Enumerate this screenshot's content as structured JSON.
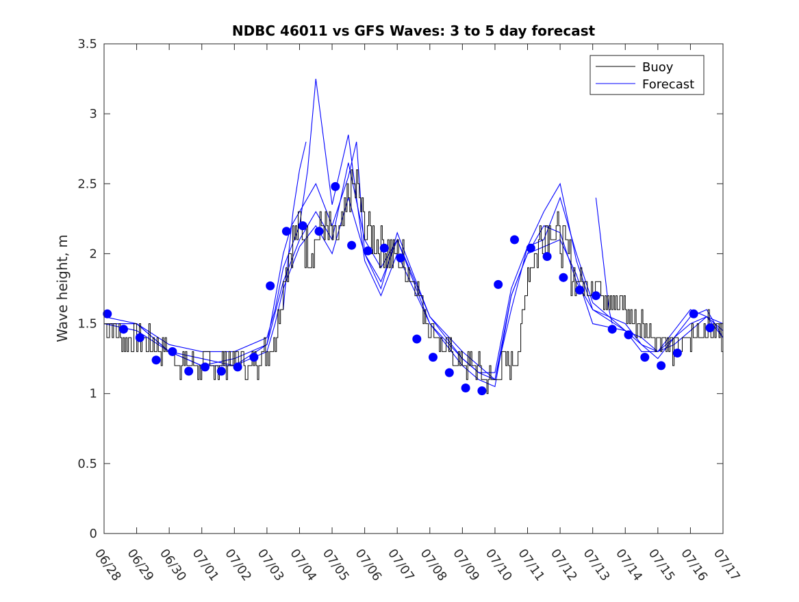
{
  "chart_data": {
    "type": "line",
    "title": "NDBC 46011 vs GFS Waves: 3 to 5 day forecast",
    "xlabel": "",
    "ylabel": "Wave height, m",
    "xlim": [
      "06/28",
      "07/17"
    ],
    "ylim": [
      0,
      3.5
    ],
    "y_ticks": [
      0,
      0.5,
      1,
      1.5,
      2,
      2.5,
      3,
      3.5
    ],
    "y_tick_labels": [
      "0",
      "0.5",
      "1",
      "1.5",
      "2",
      "2.5",
      "3",
      "3.5"
    ],
    "x_tick_labels": [
      "06/28",
      "06/29",
      "06/30",
      "07/01",
      "07/02",
      "07/03",
      "07/04",
      "07/05",
      "07/06",
      "07/07",
      "07/08",
      "07/09",
      "07/10",
      "07/11",
      "07/12",
      "07/13",
      "07/14",
      "07/15",
      "07/16",
      "07/17"
    ],
    "grid": false,
    "legend": {
      "position": "top-right",
      "entries": [
        "Buoy",
        "Forecast"
      ]
    },
    "colors": {
      "buoy": "#000000",
      "forecast": "#0000ff",
      "axes": "#262626"
    },
    "series": [
      {
        "name": "Buoy",
        "x_unit": "days after 06/28 00:00",
        "x": [
          0,
          0.5,
          1,
          1.5,
          2,
          2.5,
          3,
          3.5,
          4,
          4.5,
          5,
          5.25,
          5.5,
          5.75,
          6,
          6.25,
          6.5,
          6.75,
          7,
          7.25,
          7.5,
          7.75,
          8,
          8.25,
          8.5,
          8.75,
          9,
          9.5,
          10,
          10.5,
          11,
          11.5,
          11.75,
          12,
          12.25,
          12.5,
          12.75,
          13,
          13.25,
          13.5,
          13.75,
          14,
          14.5,
          15,
          15.5,
          16,
          16.25,
          16.5,
          17,
          17.5,
          18,
          18.5,
          19
        ],
        "y": [
          1.5,
          1.4,
          1.4,
          1.35,
          1.3,
          1.2,
          1.2,
          1.2,
          1.25,
          1.2,
          1.3,
          1.4,
          1.8,
          2.1,
          2.2,
          2.0,
          2.1,
          2.2,
          2.1,
          2.1,
          2.4,
          2.5,
          2.2,
          2.1,
          2.1,
          2.0,
          2.0,
          1.8,
          1.5,
          1.3,
          1.2,
          1.2,
          1.1,
          1.1,
          1.2,
          1.2,
          1.3,
          1.9,
          2.0,
          2.2,
          2.2,
          2.1,
          1.8,
          1.8,
          1.7,
          1.6,
          1.5,
          1.5,
          1.4,
          1.3,
          1.4,
          1.5,
          1.4
        ]
      },
      {
        "name": "Forecast",
        "x": [
          0,
          1,
          2,
          3,
          4,
          5,
          5.5,
          6,
          6.5,
          7,
          7.5,
          8,
          8.5,
          9,
          10,
          11,
          11.5,
          12,
          12.5,
          13,
          13.5,
          14,
          14.5,
          15,
          16,
          16.5,
          17,
          17.5,
          18,
          18.5,
          19
        ],
        "y": [
          1.5,
          1.45,
          1.3,
          1.2,
          1.25,
          1.35,
          1.8,
          2.1,
          2.3,
          2.1,
          2.65,
          2.1,
          1.9,
          2.1,
          1.5,
          1.2,
          1.1,
          1.05,
          1.7,
          2.0,
          2.2,
          2.15,
          1.8,
          1.6,
          1.45,
          1.4,
          1.3,
          1.35,
          1.45,
          1.55,
          1.5
        ]
      },
      {
        "name": "",
        "x": [
          0,
          1,
          2,
          3,
          4,
          5,
          5.5,
          5.75,
          6,
          6.5,
          7,
          7.5,
          7.75,
          8,
          8.5,
          9,
          10,
          11,
          11.5,
          12,
          12.5,
          13,
          13.5,
          14,
          14.5,
          15,
          16,
          16.5,
          17,
          17.5,
          18,
          18.5,
          19
        ],
        "y": [
          1.5,
          1.5,
          1.3,
          1.25,
          1.2,
          1.35,
          2.0,
          2.2,
          2.3,
          2.5,
          2.2,
          2.55,
          2.8,
          2.0,
          1.75,
          2.15,
          1.55,
          1.3,
          1.2,
          1.1,
          1.6,
          2.05,
          2.1,
          2.4,
          2.0,
          1.65,
          1.45,
          1.35,
          1.3,
          1.45,
          1.6,
          1.55,
          1.45
        ]
      },
      {
        "name": "",
        "x": [
          0,
          1,
          2,
          3,
          4,
          5,
          5.25,
          5.5,
          6,
          6.25,
          6.5,
          7,
          7.5,
          8,
          8.5,
          9,
          10,
          11,
          11.5,
          12,
          12.5,
          13,
          13.5,
          14,
          14.5,
          15,
          16,
          16.5,
          17,
          17.5,
          18,
          18.5,
          19
        ],
        "y": [
          1.5,
          1.5,
          1.35,
          1.3,
          1.3,
          1.4,
          1.6,
          1.9,
          2.2,
          2.6,
          3.25,
          2.35,
          2.85,
          1.95,
          1.7,
          2.0,
          1.5,
          1.25,
          1.15,
          1.15,
          1.75,
          2.05,
          2.3,
          2.5,
          1.95,
          1.6,
          1.5,
          1.35,
          1.25,
          1.4,
          1.55,
          1.6,
          1.4
        ]
      },
      {
        "name": "",
        "x": [
          0,
          1,
          2,
          3,
          4,
          5,
          5.25,
          5.5,
          6,
          6.5,
          7,
          7.5,
          8,
          8.5,
          9,
          10,
          11,
          11.5,
          12,
          12.5,
          13,
          13.5,
          14,
          14.5,
          15,
          16,
          16.5,
          17,
          17.5,
          18,
          18.5,
          19
        ],
        "y": [
          1.55,
          1.5,
          1.3,
          1.2,
          1.2,
          1.3,
          1.5,
          1.75,
          2.05,
          2.2,
          2.0,
          2.4,
          2.0,
          1.8,
          2.1,
          1.55,
          1.25,
          1.15,
          1.1,
          1.7,
          2.0,
          2.05,
          2.1,
          1.85,
          1.5,
          1.45,
          1.3,
          1.3,
          1.4,
          1.5,
          1.55,
          1.4
        ]
      },
      {
        "name": "",
        "x": [
          5.5,
          5.6,
          5.8,
          6.0,
          6.2
        ],
        "y": [
          1.6,
          1.85,
          2.3,
          2.6,
          2.8
        ]
      },
      {
        "name": "",
        "x": [
          15.1,
          15.2,
          15.35,
          15.5,
          15.6
        ],
        "y": [
          2.4,
          2.2,
          1.9,
          1.6,
          1.5
        ]
      }
    ],
    "markers": {
      "name": "",
      "x": [
        0.1,
        0.6,
        1.1,
        1.6,
        2.1,
        2.6,
        3.1,
        3.6,
        4.1,
        4.6,
        5.1,
        5.6,
        6.1,
        6.6,
        7.1,
        7.6,
        8.1,
        8.6,
        9.1,
        9.6,
        10.1,
        10.6,
        11.1,
        11.6,
        12.1,
        12.6,
        13.1,
        13.6,
        14.1,
        14.6,
        15.1,
        15.6,
        16.1,
        16.6,
        17.1,
        17.6,
        18.1,
        18.6
      ],
      "y": [
        1.57,
        1.46,
        1.4,
        1.24,
        1.3,
        1.16,
        1.19,
        1.16,
        1.19,
        1.26,
        1.77,
        2.16,
        2.2,
        2.16,
        2.48,
        2.06,
        2.02,
        2.04,
        1.97,
        1.39,
        1.26,
        1.15,
        1.04,
        1.02,
        1.78,
        2.1,
        2.04,
        1.98,
        1.83,
        1.74,
        1.7,
        1.46,
        1.42,
        1.26,
        1.2,
        1.29,
        1.57,
        1.47
      ]
    }
  }
}
